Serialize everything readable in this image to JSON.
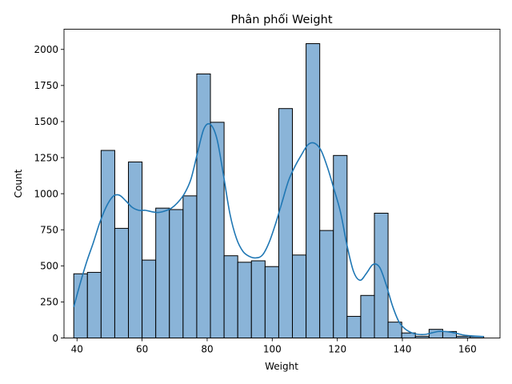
{
  "chart_data": {
    "type": "bar",
    "subtype": "histogram",
    "title": "Phân phối Weight",
    "xlabel": "Weight",
    "ylabel": "Count",
    "xlim": [
      36,
      170
    ],
    "ylim": [
      0,
      2140
    ],
    "xticks": [
      40,
      60,
      80,
      100,
      120,
      140,
      160
    ],
    "yticks": [
      0,
      250,
      500,
      750,
      1000,
      1250,
      1500,
      1750,
      2000
    ],
    "bins": [
      {
        "start": 39.0,
        "end": 43.2,
        "count": 445
      },
      {
        "start": 43.2,
        "end": 47.4,
        "count": 455
      },
      {
        "start": 47.4,
        "end": 51.6,
        "count": 1300
      },
      {
        "start": 51.6,
        "end": 55.8,
        "count": 760
      },
      {
        "start": 55.8,
        "end": 60.0,
        "count": 1220
      },
      {
        "start": 60.0,
        "end": 64.2,
        "count": 540
      },
      {
        "start": 64.2,
        "end": 68.4,
        "count": 900
      },
      {
        "start": 68.4,
        "end": 72.6,
        "count": 890
      },
      {
        "start": 72.6,
        "end": 76.8,
        "count": 985
      },
      {
        "start": 76.8,
        "end": 81.0,
        "count": 1830
      },
      {
        "start": 81.0,
        "end": 85.2,
        "count": 1495
      },
      {
        "start": 85.2,
        "end": 89.4,
        "count": 570
      },
      {
        "start": 89.4,
        "end": 93.6,
        "count": 525
      },
      {
        "start": 93.6,
        "end": 97.8,
        "count": 535
      },
      {
        "start": 97.8,
        "end": 102.0,
        "count": 495
      },
      {
        "start": 102.0,
        "end": 106.2,
        "count": 1590
      },
      {
        "start": 106.2,
        "end": 110.4,
        "count": 575
      },
      {
        "start": 110.4,
        "end": 114.6,
        "count": 2040
      },
      {
        "start": 114.6,
        "end": 118.8,
        "count": 745
      },
      {
        "start": 118.8,
        "end": 123.0,
        "count": 1265
      },
      {
        "start": 123.0,
        "end": 127.2,
        "count": 150
      },
      {
        "start": 127.2,
        "end": 131.4,
        "count": 295
      },
      {
        "start": 131.4,
        "end": 135.6,
        "count": 865
      },
      {
        "start": 135.6,
        "end": 139.8,
        "count": 110
      },
      {
        "start": 139.8,
        "end": 144.0,
        "count": 35
      },
      {
        "start": 144.0,
        "end": 148.2,
        "count": 12
      },
      {
        "start": 148.2,
        "end": 152.4,
        "count": 60
      },
      {
        "start": 152.4,
        "end": 156.6,
        "count": 45
      },
      {
        "start": 156.6,
        "end": 160.8,
        "count": 12
      },
      {
        "start": 160.8,
        "end": 165.0,
        "count": 10
      }
    ],
    "kde": {
      "x": [
        39,
        41,
        43,
        45,
        47,
        49,
        51,
        53,
        55,
        57,
        59,
        61,
        63,
        65,
        67,
        69,
        71,
        73,
        75,
        77,
        79,
        81,
        83,
        85,
        87,
        89,
        91,
        93,
        95,
        97,
        99,
        101,
        103,
        105,
        107,
        109,
        111,
        113,
        115,
        117,
        119,
        121,
        123,
        125,
        127,
        129,
        131,
        133,
        135,
        137,
        139,
        141,
        143,
        145,
        147,
        149,
        151,
        153,
        155,
        157,
        159,
        161,
        163,
        165
      ],
      "y": [
        215,
        380,
        530,
        660,
        800,
        910,
        980,
        990,
        950,
        905,
        885,
        885,
        875,
        870,
        880,
        900,
        940,
        1000,
        1100,
        1280,
        1450,
        1480,
        1380,
        1130,
        860,
        690,
        600,
        565,
        555,
        575,
        660,
        790,
        940,
        1090,
        1190,
        1270,
        1340,
        1350,
        1300,
        1180,
        1030,
        870,
        640,
        460,
        400,
        450,
        510,
        490,
        370,
        220,
        110,
        60,
        35,
        25,
        25,
        35,
        45,
        45,
        40,
        30,
        20,
        15,
        12,
        10
      ]
    },
    "colors": {
      "bar_fill": "#8ab4d8",
      "bar_edge": "#000000",
      "kde_line": "#1f77b4"
    },
    "grid": false,
    "legend": "none"
  }
}
